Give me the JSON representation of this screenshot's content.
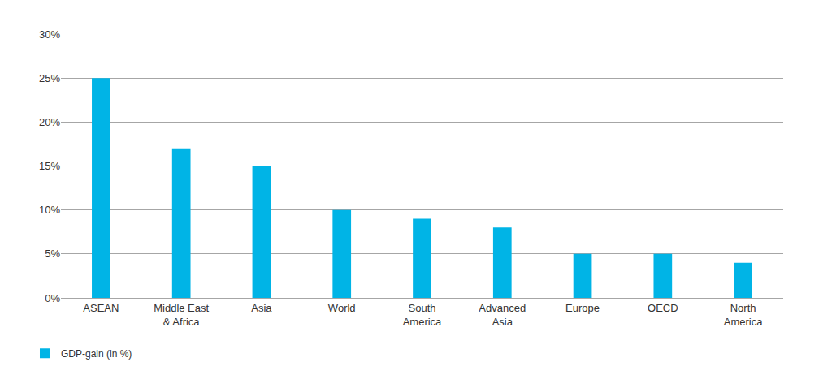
{
  "chart_data": {
    "type": "bar",
    "categories": [
      "ASEAN",
      "Middle East & Africa",
      "Asia",
      "World",
      "South America",
      "Advanced Asia",
      "Europe",
      "OECD",
      "North America"
    ],
    "series": [
      {
        "name": "GDP-gain (in %)",
        "color": "#00b4e6",
        "values": [
          25,
          17,
          15,
          10,
          9,
          8,
          5,
          5,
          4
        ]
      }
    ],
    "ylim": [
      0,
      30
    ],
    "yticks": [
      {
        "value": 0,
        "label": "0%"
      },
      {
        "value": 5,
        "label": "5%"
      },
      {
        "value": 10,
        "label": "10%"
      },
      {
        "value": 15,
        "label": "15%"
      },
      {
        "value": 20,
        "label": "20%"
      },
      {
        "value": 25,
        "label": "25%"
      },
      {
        "value": 30,
        "label": "30%"
      }
    ],
    "grid": true,
    "legend": "bottom-left"
  }
}
